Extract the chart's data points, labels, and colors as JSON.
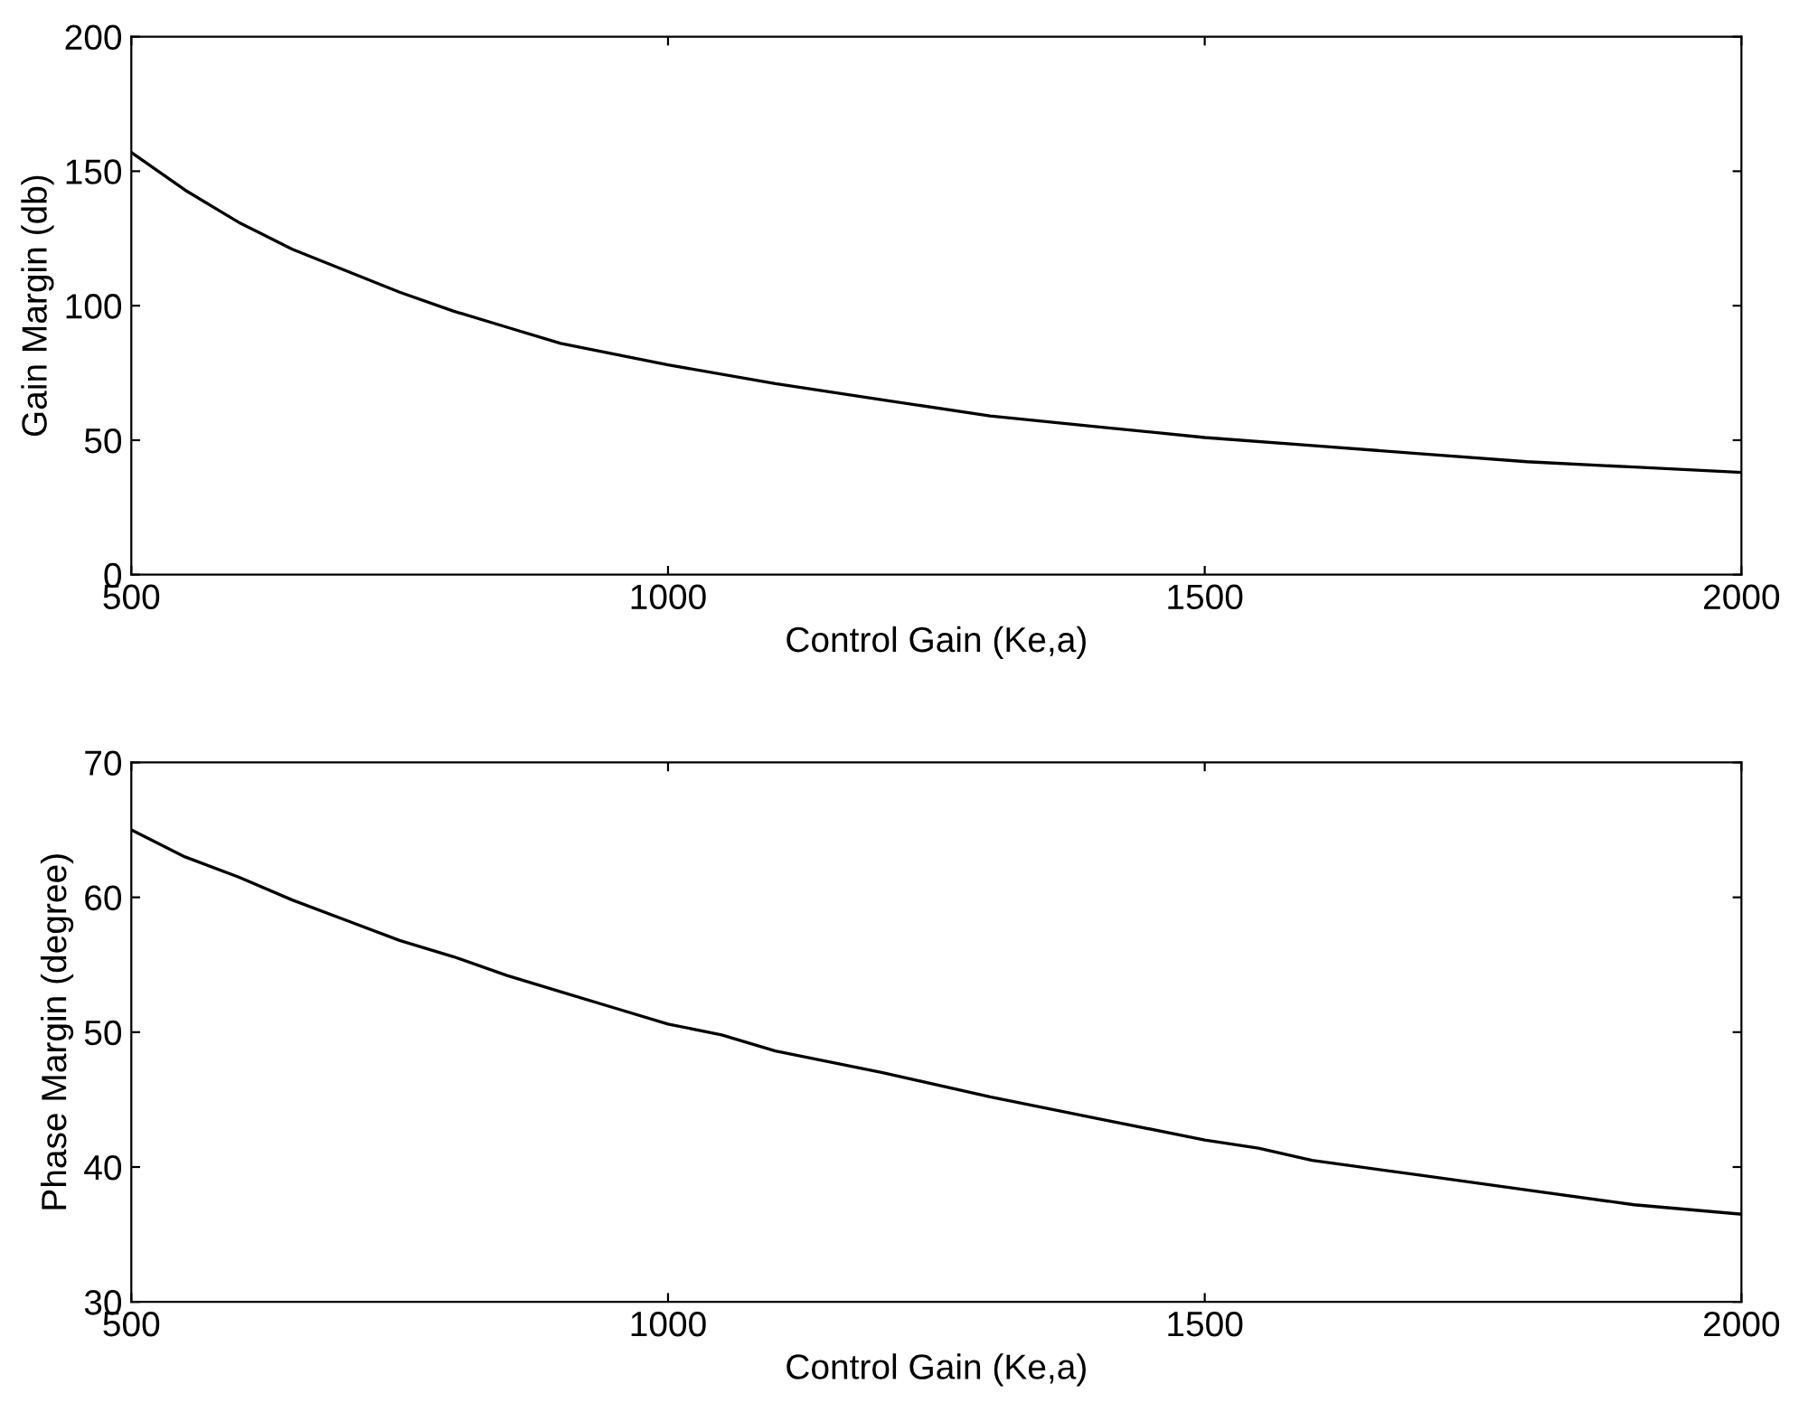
{
  "chart_data": [
    {
      "type": "line",
      "xlabel": "Control Gain (Ke,a)",
      "ylabel": "Gain Margin (db)",
      "xlim": [
        500,
        2000
      ],
      "xticks": [
        500,
        1000,
        1500,
        2000
      ],
      "ylim": [
        0,
        200
      ],
      "yticks": [
        0,
        50,
        100,
        150,
        200
      ],
      "grid": false,
      "x": [
        500,
        550,
        600,
        650,
        700,
        750,
        800,
        850,
        900,
        1000,
        1100,
        1200,
        1300,
        1400,
        1500,
        1600,
        1700,
        1800,
        1900,
        2000
      ],
      "series": [
        {
          "color": "#000000",
          "values": [
            157,
            143,
            131,
            121,
            113,
            105,
            98,
            92,
            86,
            78,
            71,
            65,
            59,
            55,
            51,
            48,
            45,
            42,
            40,
            38
          ]
        }
      ]
    },
    {
      "type": "line",
      "xlabel": "Control Gain (Ke,a)",
      "ylabel": "Phase Margin (degree)",
      "xlim": [
        500,
        2000
      ],
      "xticks": [
        500,
        1000,
        1500,
        2000
      ],
      "ylim": [
        30,
        70
      ],
      "yticks": [
        30,
        40,
        50,
        60,
        70
      ],
      "grid": false,
      "x": [
        500,
        550,
        600,
        650,
        700,
        750,
        800,
        850,
        900,
        950,
        1000,
        1050,
        1100,
        1200,
        1300,
        1400,
        1500,
        1550,
        1600,
        1700,
        1800,
        1900,
        2000
      ],
      "series": [
        {
          "color": "#000000",
          "values": [
            65,
            63,
            61.5,
            59.8,
            58.3,
            56.8,
            55.6,
            54.2,
            53,
            51.8,
            50.6,
            49.8,
            48.6,
            47,
            45.2,
            43.6,
            42,
            41.4,
            40.5,
            39.4,
            38.3,
            37.2,
            36.5
          ]
        }
      ]
    }
  ]
}
